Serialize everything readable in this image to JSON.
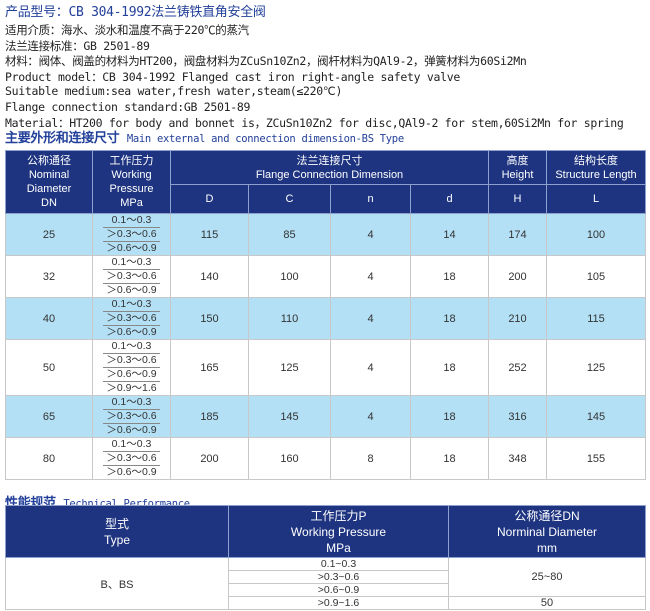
{
  "info": {
    "title": "产品型号：CB 304-1992法兰铸铁直角安全阀",
    "lines": [
      "适用介质：海水、淡水和温度不高于220℃的蒸汽",
      "法兰连接标准：GB 2501-89",
      "材料：阀体、阀盖的材料为HT200，阀盘材料为ZCuSn10Zn2，阀杆材料为QAl9-2，弹簧材料为60Si2Mn",
      "Product model：CB 304-1992 Flanged cast iron right-angle safety valve",
      "Suitable medium:sea water,fresh water,steam(≤220℃)",
      "Flange connection standard:GB 2501-89",
      "Material：HT200 for body and bonnet is，ZCuSn10Zn2 for disc,QAl9-2 for stem,60Si2Mn for spring"
    ]
  },
  "dim": {
    "section_cn": "主要外形和连接尺寸",
    "section_en": "Main external and connection  dimension-BS Type",
    "headers": {
      "dn": [
        "公称通径",
        "Nominal",
        "Diameter",
        "DN"
      ],
      "wp": [
        "工作压力",
        "Working",
        "Pressure",
        "MPa"
      ],
      "flange": [
        "法兰连接尺寸",
        "Flange Connection Dimension"
      ],
      "h": [
        "高度",
        "Height"
      ],
      "l": [
        "结构长度",
        "Structure  Length"
      ],
      "sub": [
        "D",
        "C",
        "n",
        "d",
        "H",
        "L"
      ]
    },
    "rows": [
      {
        "dn": "25",
        "p": [
          "0.1～0.3",
          "＞0.3～0.6",
          "＞0.6～0.9"
        ],
        "D": "115",
        "C": "85",
        "n": "4",
        "d": "14",
        "H": "174",
        "L": "100"
      },
      {
        "dn": "32",
        "p": [
          "0.1～0.3",
          "＞0.3～0.6",
          "＞0.6～0.9"
        ],
        "D": "140",
        "C": "100",
        "n": "4",
        "d": "18",
        "H": "200",
        "L": "105"
      },
      {
        "dn": "40",
        "p": [
          "0.1～0.3",
          "＞0.3～0.6",
          "＞0.6～0.9"
        ],
        "D": "150",
        "C": "110",
        "n": "4",
        "d": "18",
        "H": "210",
        "L": "115"
      },
      {
        "dn": "50",
        "p": [
          "0.1～0.3",
          "＞0.3～0.6",
          "＞0.6～0.9",
          "＞0.9～1.6"
        ],
        "D": "165",
        "C": "125",
        "n": "4",
        "d": "18",
        "H": "252",
        "L": "125"
      },
      {
        "dn": "65",
        "p": [
          "0.1～0.3",
          "＞0.3～0.6",
          "＞0.6～0.9"
        ],
        "D": "185",
        "C": "145",
        "n": "4",
        "d": "18",
        "H": "316",
        "L": "145"
      },
      {
        "dn": "80",
        "p": [
          "0.1～0.3",
          "＞0.3～0.6",
          "＞0.6～0.9"
        ],
        "D": "200",
        "C": "160",
        "n": "8",
        "d": "18",
        "H": "348",
        "L": "155"
      }
    ]
  },
  "perf": {
    "section_cn": "性能规范",
    "section_en": "Technical Performance",
    "headers": {
      "type": [
        "型式",
        "Type"
      ],
      "wp": [
        "工作压力P",
        "Working Pressure",
        "MPa"
      ],
      "dn": [
        "公称通径DN",
        "Norminal Diameter",
        "mm"
      ]
    },
    "type": "B、BS",
    "pressures": [
      "0.1~0.3",
      ">0.3~0.6",
      ">0.6~0.9",
      ">0.9~1.6"
    ],
    "dn_values": [
      "25~80",
      "50"
    ]
  },
  "colors": {
    "header": "#1e3480",
    "row_highlight": "#b3e0f5",
    "title": "#23409a"
  }
}
